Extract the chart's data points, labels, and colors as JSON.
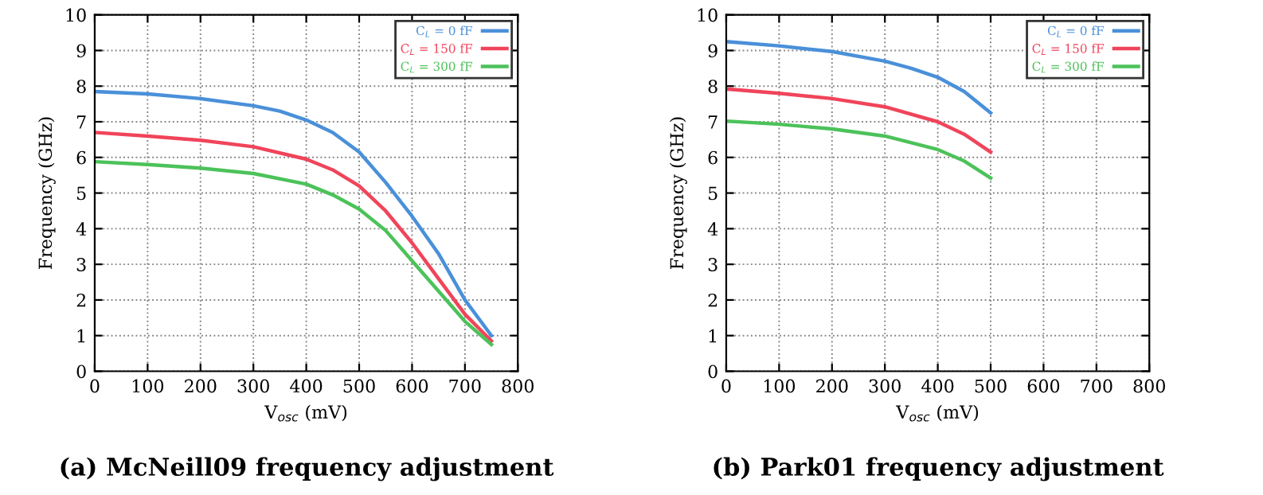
{
  "chart_data": [
    {
      "type": "line",
      "title": "(a) McNeill09 frequency adjustment",
      "xlabel": "V$_{osc}$ (mV)",
      "ylabel": "Frequency (GHz)",
      "xlim": [
        0,
        800
      ],
      "ylim": [
        0,
        10
      ],
      "xticks": [
        0,
        100,
        200,
        300,
        400,
        500,
        600,
        700,
        800
      ],
      "yticks": [
        0,
        1,
        2,
        3,
        4,
        5,
        6,
        7,
        8,
        9,
        10
      ],
      "grid": true,
      "legend": "top right",
      "line_style": "solid",
      "series": [
        {
          "name": "C$_{L}$ = 0 fF",
          "color": "#4a90d9",
          "x": [
            0,
            100,
            200,
            300,
            350,
            400,
            450,
            500,
            550,
            600,
            650,
            700,
            750
          ],
          "values": [
            7.85,
            7.78,
            7.65,
            7.45,
            7.3,
            7.05,
            6.7,
            6.15,
            5.3,
            4.35,
            3.3,
            2.0,
            1.0
          ]
        },
        {
          "name": "C$_{L}$ = 150 fF",
          "color": "#f0445a",
          "x": [
            0,
            100,
            200,
            300,
            400,
            450,
            500,
            550,
            600,
            650,
            700,
            750
          ],
          "values": [
            6.7,
            6.6,
            6.48,
            6.3,
            5.95,
            5.65,
            5.2,
            4.5,
            3.6,
            2.6,
            1.6,
            0.85
          ]
        },
        {
          "name": "C$_{L}$ = 300 fF",
          "color": "#4cc25a",
          "x": [
            0,
            100,
            200,
            300,
            400,
            450,
            500,
            550,
            600,
            650,
            700,
            750
          ],
          "values": [
            5.88,
            5.8,
            5.7,
            5.55,
            5.25,
            4.95,
            4.55,
            3.95,
            3.1,
            2.25,
            1.4,
            0.75
          ]
        }
      ]
    },
    {
      "type": "line",
      "title": "(b) Park01 frequency adjustment",
      "xlabel": "V$_{osc}$ (mV)",
      "ylabel": "Frequency (GHz)",
      "xlim": [
        0,
        800
      ],
      "ylim": [
        0,
        10
      ],
      "xticks": [
        0,
        100,
        200,
        300,
        400,
        500,
        600,
        700,
        800
      ],
      "yticks": [
        0,
        1,
        2,
        3,
        4,
        5,
        6,
        7,
        8,
        9,
        10
      ],
      "grid": true,
      "legend": "top right",
      "line_style": "solid",
      "series": [
        {
          "name": "C$_{L}$ = 0 fF",
          "color": "#4a90d9",
          "x": [
            0,
            100,
            200,
            300,
            350,
            400,
            450,
            500
          ],
          "values": [
            9.25,
            9.13,
            8.97,
            8.7,
            8.5,
            8.25,
            7.85,
            7.25
          ]
        },
        {
          "name": "C$_{L}$ = 150 fF",
          "color": "#f0445a",
          "x": [
            0,
            100,
            200,
            300,
            400,
            450,
            500
          ],
          "values": [
            7.92,
            7.8,
            7.65,
            7.42,
            7.0,
            6.65,
            6.15
          ]
        },
        {
          "name": "C$_{L}$ = 300 fF",
          "color": "#4cc25a",
          "x": [
            0,
            100,
            200,
            300,
            400,
            450,
            500
          ],
          "values": [
            7.02,
            6.93,
            6.8,
            6.6,
            6.22,
            5.9,
            5.42
          ]
        }
      ]
    }
  ]
}
